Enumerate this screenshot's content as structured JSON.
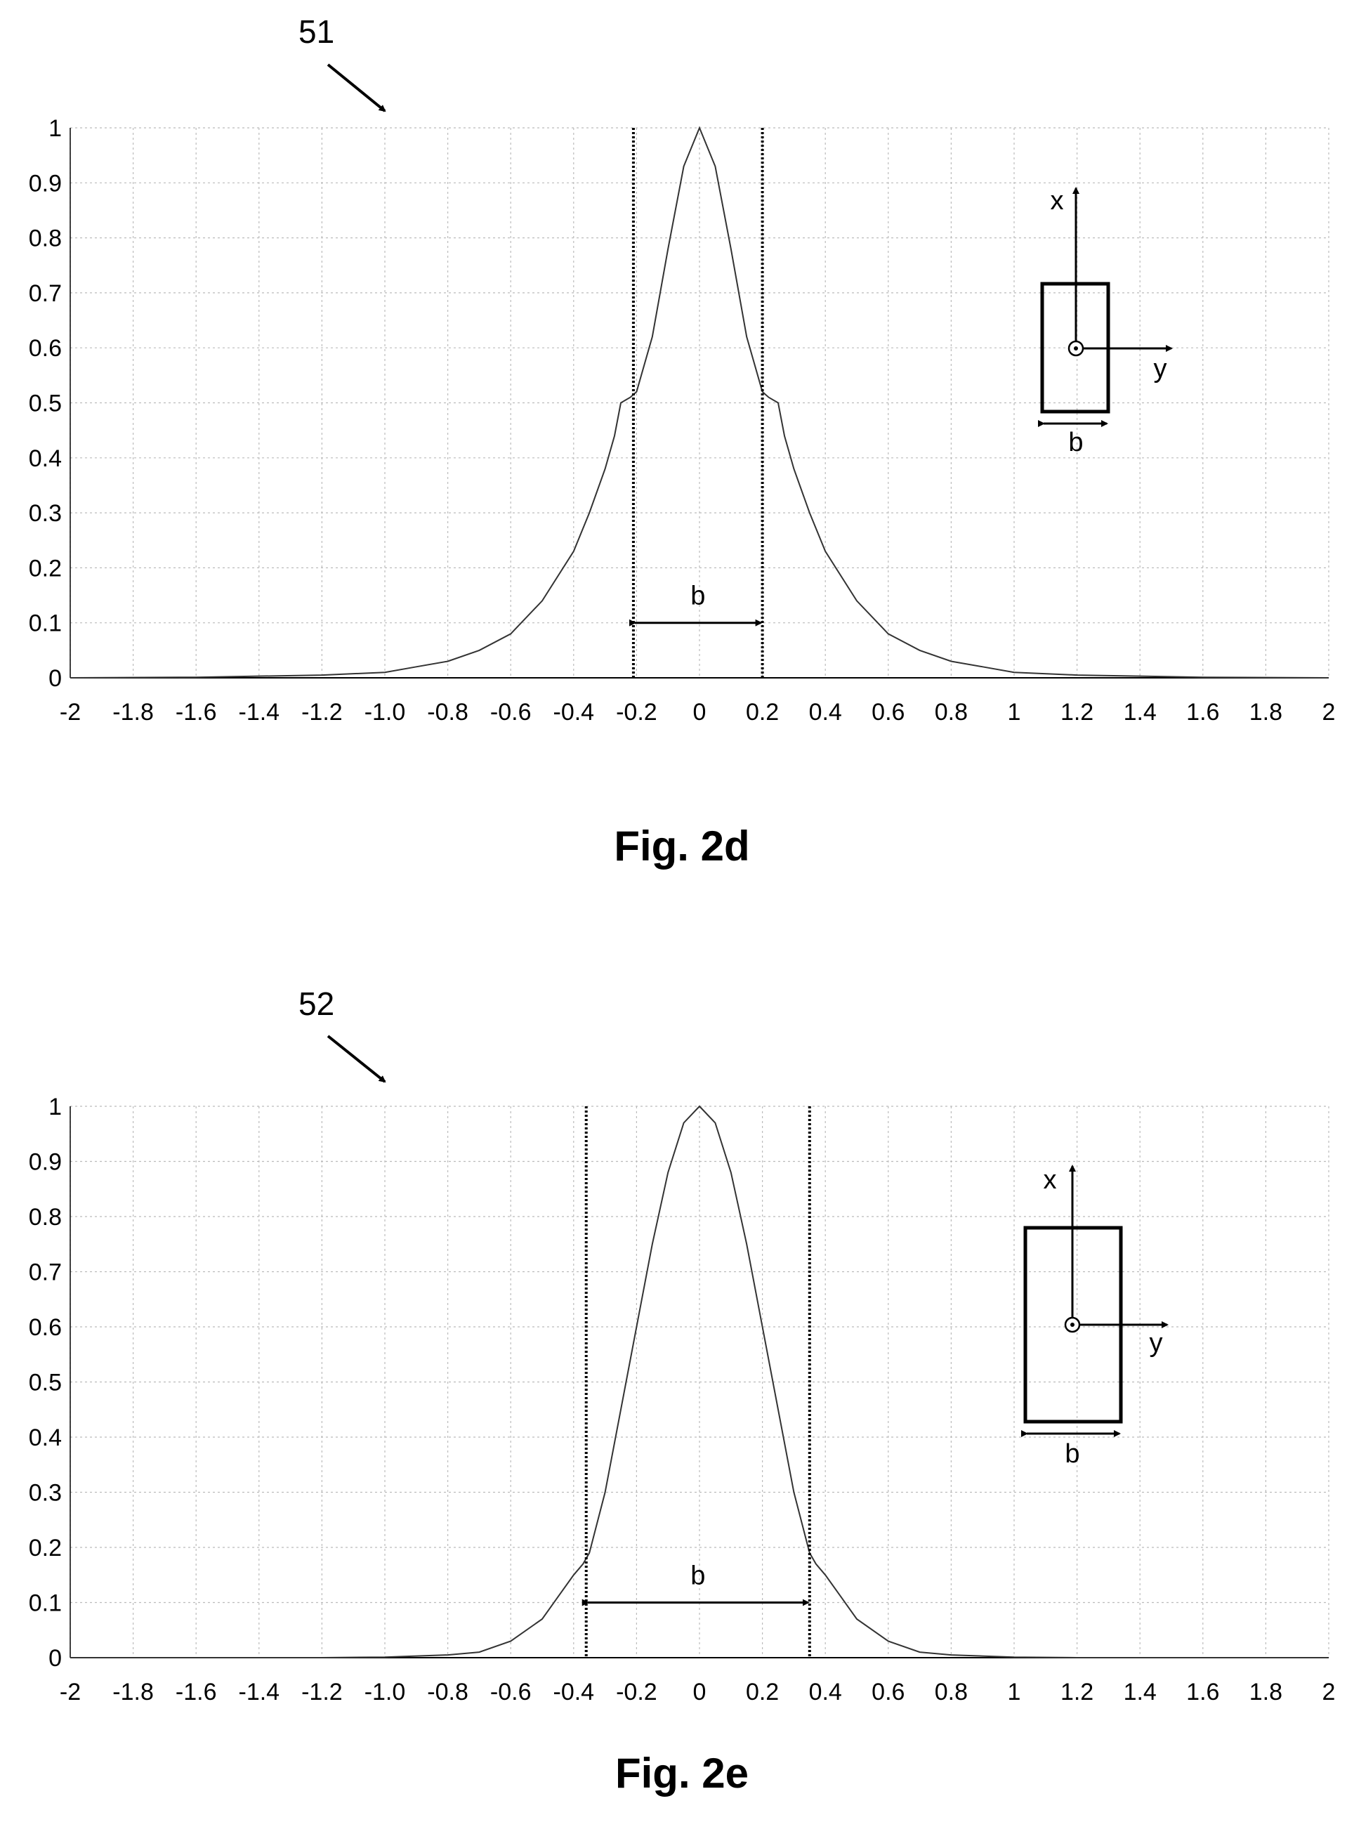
{
  "figures": [
    {
      "reference_number": "51",
      "caption": "Fig. 2d",
      "inset": {
        "x_axis_label": "x",
        "y_axis_label": "y",
        "width_label": "b"
      },
      "chart_data": {
        "type": "line",
        "title": "",
        "xlabel": "",
        "ylabel": "",
        "xlim": [
          -2,
          2
        ],
        "ylim": [
          0,
          1
        ],
        "grid": true,
        "x_tick_values": [
          -2,
          -1.8,
          -1.6,
          -1.4,
          -1.2,
          -1.0,
          -0.8,
          -0.6,
          -0.4,
          -0.2,
          0,
          0.2,
          0.4,
          0.6,
          0.8,
          1,
          1.2,
          1.4,
          1.6,
          1.8,
          2
        ],
        "x_tick_labels": [
          "-2",
          "-1.8",
          "-1.6",
          "-1.4",
          "-1.2",
          "-1.0",
          "-0.8",
          "-0.6",
          "-0.4",
          "-0.2",
          "0",
          "0.2",
          "0.4",
          "0.6",
          "0.8",
          "1",
          "1.2",
          "1.4",
          "1.6",
          "1.8",
          "2"
        ],
        "y_tick_values": [
          0,
          0.1,
          0.2,
          0.3,
          0.4,
          0.5,
          0.6,
          0.7,
          0.8,
          0.9,
          1
        ],
        "y_tick_labels": [
          "0",
          "0.1",
          "0.2",
          "0.3",
          "0.4",
          "0.5",
          "0.6",
          "0.7",
          "0.8",
          "0.9",
          "1"
        ],
        "series": [
          {
            "x": [
              -2,
              -1.6,
              -1.2,
              -1.0,
              -0.9,
              -0.8,
              -0.7,
              -0.6,
              -0.5,
              -0.4,
              -0.35,
              -0.3,
              -0.27,
              -0.25,
              -0.22,
              -0.2,
              -0.15,
              -0.1,
              -0.05,
              0,
              0.05,
              0.1,
              0.15,
              0.2,
              0.22,
              0.25,
              0.27,
              0.3,
              0.35,
              0.4,
              0.5,
              0.6,
              0.7,
              0.8,
              0.9,
              1.0,
              1.2,
              1.6,
              2
            ],
            "y": [
              0.0,
              0.001,
              0.005,
              0.01,
              0.02,
              0.03,
              0.05,
              0.08,
              0.14,
              0.23,
              0.3,
              0.38,
              0.44,
              0.5,
              0.51,
              0.52,
              0.62,
              0.78,
              0.93,
              1.0,
              0.93,
              0.78,
              0.62,
              0.52,
              0.51,
              0.5,
              0.44,
              0.38,
              0.3,
              0.23,
              0.14,
              0.08,
              0.05,
              0.03,
              0.02,
              0.01,
              0.005,
              0.001,
              0.0
            ]
          }
        ],
        "marker_lines_x": [
          -0.21,
          0.2
        ],
        "dimension_label": "b",
        "dimension_y": 0.1
      }
    },
    {
      "reference_number": "52",
      "caption": "Fig. 2e",
      "inset": {
        "x_axis_label": "x",
        "y_axis_label": "y",
        "width_label": "b"
      },
      "chart_data": {
        "type": "line",
        "title": "",
        "xlabel": "",
        "ylabel": "",
        "xlim": [
          -2,
          2
        ],
        "ylim": [
          0,
          1
        ],
        "grid": true,
        "x_tick_values": [
          -2,
          -1.8,
          -1.6,
          -1.4,
          -1.2,
          -1.0,
          -0.8,
          -0.6,
          -0.4,
          -0.2,
          0,
          0.2,
          0.4,
          0.6,
          0.8,
          1,
          1.2,
          1.4,
          1.6,
          1.8,
          2
        ],
        "x_tick_labels": [
          "-2",
          "-1.8",
          "-1.6",
          "-1.4",
          "-1.2",
          "-1.0",
          "-0.8",
          "-0.6",
          "-0.4",
          "-0.2",
          "0",
          "0.2",
          "0.4",
          "0.6",
          "0.8",
          "1",
          "1.2",
          "1.4",
          "1.6",
          "1.8",
          "2"
        ],
        "y_tick_values": [
          0,
          0.1,
          0.2,
          0.3,
          0.4,
          0.5,
          0.6,
          0.7,
          0.8,
          0.9,
          1
        ],
        "y_tick_labels": [
          "0",
          "0.1",
          "0.2",
          "0.3",
          "0.4",
          "0.5",
          "0.6",
          "0.7",
          "0.8",
          "0.9",
          "1"
        ],
        "series": [
          {
            "x": [
              -2,
              -1.2,
              -1.0,
              -0.8,
              -0.7,
              -0.6,
              -0.5,
              -0.45,
              -0.4,
              -0.37,
              -0.35,
              -0.3,
              -0.25,
              -0.2,
              -0.15,
              -0.1,
              -0.05,
              0,
              0.05,
              0.1,
              0.15,
              0.2,
              0.25,
              0.3,
              0.35,
              0.37,
              0.4,
              0.45,
              0.5,
              0.6,
              0.7,
              0.8,
              1.0,
              1.2,
              2
            ],
            "y": [
              0.0,
              0.0,
              0.001,
              0.005,
              0.01,
              0.03,
              0.07,
              0.11,
              0.15,
              0.17,
              0.19,
              0.3,
              0.45,
              0.6,
              0.75,
              0.88,
              0.97,
              1.0,
              0.97,
              0.88,
              0.75,
              0.6,
              0.45,
              0.3,
              0.19,
              0.17,
              0.15,
              0.11,
              0.07,
              0.03,
              0.01,
              0.005,
              0.001,
              0.0,
              0.0
            ]
          }
        ],
        "marker_lines_x": [
          -0.36,
          0.35
        ],
        "dimension_label": "b",
        "dimension_y": 0.1
      }
    }
  ]
}
